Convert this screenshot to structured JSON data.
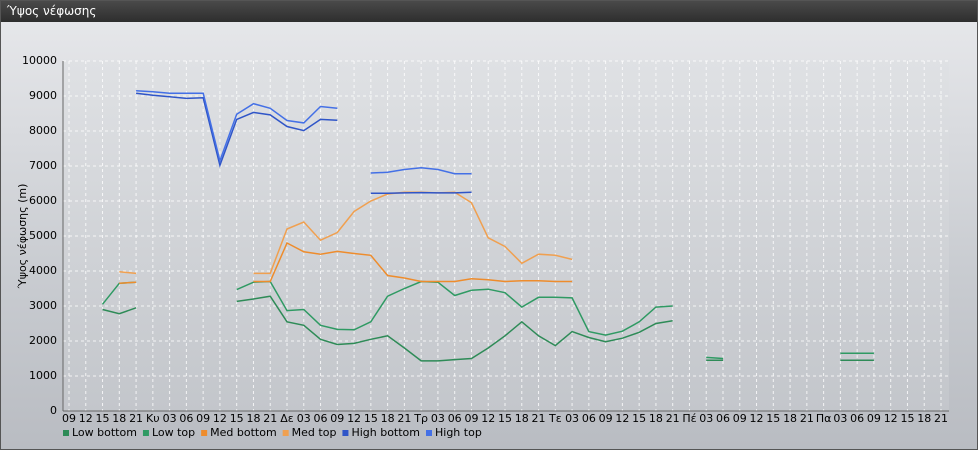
{
  "chart_data": {
    "type": "line",
    "title": "Ύψος νέφωσης",
    "y_label": "Ύψος νέφωσης (m)",
    "categories": [
      "09",
      "12",
      "15",
      "18",
      "21",
      "Κυ",
      "03",
      "06",
      "09",
      "12",
      "15",
      "18",
      "21",
      "Δε",
      "03",
      "06",
      "09",
      "12",
      "15",
      "18",
      "21",
      "Τρ",
      "03",
      "06",
      "09",
      "12",
      "15",
      "18",
      "21",
      "Τε",
      "03",
      "06",
      "09",
      "12",
      "15",
      "18",
      "21",
      "Πέ",
      "03",
      "06",
      "09",
      "12",
      "15",
      "18",
      "21",
      "Πα",
      "03",
      "06",
      "09",
      "12",
      "15",
      "18",
      "21"
    ],
    "ylim": [
      0,
      10000
    ],
    "yticks": [
      0,
      1000,
      2000,
      3000,
      4000,
      5000,
      6000,
      7000,
      8000,
      9000,
      10000
    ],
    "grid": true,
    "legend": "bottom-left",
    "series": [
      {
        "name": "Low bottom",
        "color": "#2e8b57",
        "values": [
          null,
          null,
          2900,
          2780,
          2950,
          null,
          null,
          null,
          null,
          null,
          3130,
          3200,
          3280,
          2550,
          2450,
          2050,
          1900,
          1930,
          2050,
          2150,
          1800,
          1430,
          1430,
          1470,
          1500,
          1800,
          2150,
          2550,
          2150,
          1870,
          2270,
          2100,
          1980,
          2080,
          2250,
          2500,
          2580,
          null,
          1450,
          1450,
          null,
          null,
          null,
          null,
          null,
          null,
          1450,
          1450,
          1450,
          null,
          null,
          null,
          null
        ]
      },
      {
        "name": "Low top",
        "color": "#2f9a63",
        "values": [
          null,
          null,
          3050,
          3650,
          3680,
          null,
          null,
          null,
          null,
          null,
          3470,
          3680,
          3700,
          2870,
          2900,
          2450,
          2330,
          2320,
          2550,
          3280,
          3500,
          3700,
          3680,
          3300,
          3450,
          3480,
          3380,
          2970,
          3250,
          3250,
          3230,
          2270,
          2170,
          2280,
          2550,
          2970,
          3000,
          null,
          1530,
          1500,
          null,
          null,
          null,
          null,
          null,
          null,
          1650,
          1650,
          1650,
          null,
          null,
          null,
          null
        ]
      },
      {
        "name": "Med bottom",
        "color": "#ee8c2c",
        "values": [
          null,
          null,
          null,
          3650,
          3680,
          null,
          null,
          null,
          null,
          null,
          null,
          3700,
          3700,
          4800,
          4550,
          4480,
          4560,
          4500,
          4450,
          3870,
          3800,
          3700,
          3700,
          3700,
          3780,
          3750,
          3700,
          3720,
          3720,
          3700,
          3700,
          null,
          null,
          null,
          null,
          null,
          null,
          null,
          null,
          null,
          null,
          null,
          null,
          null,
          null,
          null,
          null,
          null,
          null,
          null,
          null,
          null,
          null
        ]
      },
      {
        "name": "Med top",
        "color": "#f0a050",
        "values": [
          null,
          null,
          null,
          3980,
          3930,
          null,
          null,
          null,
          null,
          null,
          null,
          3930,
          3930,
          5200,
          5400,
          4880,
          5100,
          5700,
          6000,
          6200,
          6250,
          6250,
          6230,
          6250,
          5950,
          4950,
          4700,
          4220,
          4480,
          4450,
          4330,
          null,
          null,
          null,
          null,
          null,
          null,
          null,
          null,
          null,
          null,
          null,
          null,
          null,
          null,
          null,
          null,
          null,
          null,
          null,
          null,
          null,
          null
        ]
      },
      {
        "name": "High bottom",
        "color": "#2f55c8",
        "values": [
          null,
          null,
          null,
          null,
          9080,
          9020,
          8980,
          8930,
          8950,
          7020,
          8330,
          8530,
          8460,
          8130,
          8010,
          8330,
          8310,
          null,
          6220,
          6220,
          6230,
          6240,
          6230,
          6230,
          6250,
          null,
          null,
          null,
          null,
          null,
          null,
          null,
          null,
          null,
          null,
          null,
          null,
          null,
          null,
          null,
          null,
          null,
          null,
          null,
          null,
          null,
          null,
          null,
          null,
          null,
          null,
          null,
          null
        ]
      },
      {
        "name": "High top",
        "color": "#4470e6",
        "values": [
          null,
          null,
          null,
          null,
          9150,
          9120,
          9080,
          9080,
          9080,
          7150,
          8480,
          8780,
          8650,
          8300,
          8230,
          8700,
          8650,
          null,
          6800,
          6820,
          6900,
          6950,
          6900,
          6780,
          6780,
          null,
          null,
          null,
          null,
          null,
          null,
          null,
          null,
          null,
          null,
          null,
          null,
          null,
          null,
          null,
          null,
          null,
          null,
          null,
          null,
          null,
          null,
          null,
          null,
          null,
          null,
          null,
          null
        ]
      }
    ]
  }
}
